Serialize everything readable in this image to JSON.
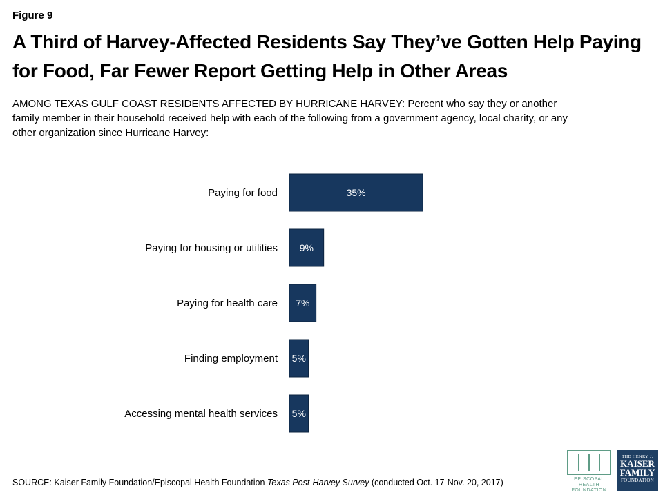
{
  "figure_label": "Figure 9",
  "title": "A Third of Harvey-Affected Residents Say They’ve Gotten Help Paying for Food, Far Fewer Report Getting Help in Other Areas",
  "subtitle_lead": "AMONG TEXAS GULF COAST RESIDENTS AFFECTED BY HURRICANE HARVEY:",
  "subtitle_rest": " Percent who say they or another family member in their household received help with each of the following from a government agency, local charity, or any other organization since Hurricane Harvey:",
  "source_prefix": "SOURCE: Kaiser Family Foundation/Episcopal Health Foundation ",
  "source_italic": "Texas Post-Harvey Survey",
  "source_suffix": " (conducted Oct. 17-Nov. 20, 2017)",
  "logos": {
    "ehf_line1": "EPISCOPAL HEALTH",
    "ehf_line2": "FOUNDATION",
    "kff_small": "THE HENRY J.",
    "kff_line1": "KAISER",
    "kff_line2": "FAMILY",
    "kff_foot": "FOUNDATION"
  },
  "colors": {
    "bar": "#17375e",
    "bar_label": "#ffffff"
  },
  "chart_data": {
    "type": "bar",
    "orientation": "horizontal",
    "categories": [
      "Paying for food",
      "Paying for housing or utilities",
      "Paying for health care",
      "Finding employment",
      "Accessing mental health services"
    ],
    "values": [
      35,
      9,
      7,
      5,
      5
    ],
    "data_labels": [
      "35%",
      "9%",
      "7%",
      "5%",
      "5%"
    ],
    "xlim": [
      0,
      100
    ],
    "grid": false,
    "axes_visible": false,
    "title": "",
    "xlabel": "",
    "ylabel": ""
  }
}
